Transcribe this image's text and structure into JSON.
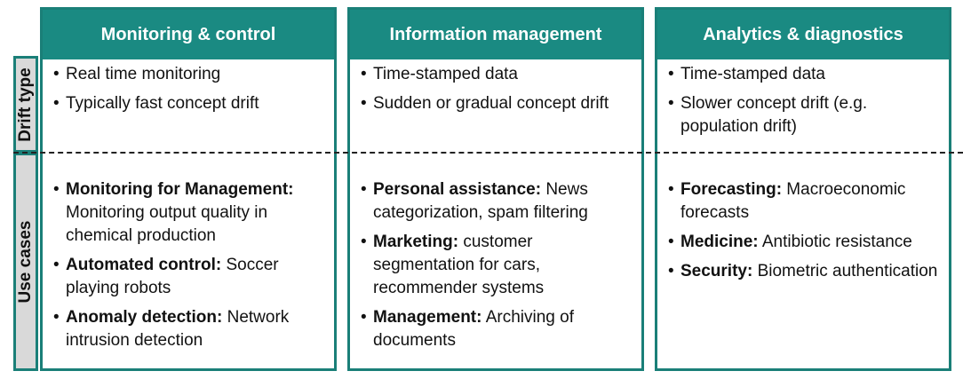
{
  "side_labels": {
    "drift": "Drift type",
    "use": "Use cases"
  },
  "columns": [
    {
      "header": "Monitoring & control",
      "drift": [
        "Real time monitoring",
        "Typically fast concept drift"
      ],
      "uses": [
        {
          "bold": "Monitoring for Management:",
          "text": " Monitoring output quality in chemical production"
        },
        {
          "bold": "Automated control:",
          "text": " Soccer playing robots"
        },
        {
          "bold": "Anomaly detection:",
          "text": " Network intrusion detection"
        }
      ]
    },
    {
      "header": "Information management",
      "drift": [
        "Time-stamped data",
        "Sudden or gradual concept drift"
      ],
      "uses": [
        {
          "bold": "Personal assistance:",
          "text": " News categorization, spam filtering"
        },
        {
          "bold": "Marketing:",
          "text": " customer segmentation for cars, recommender systems"
        },
        {
          "bold": "Management:",
          "text": " Archiving of documents"
        }
      ]
    },
    {
      "header": "Analytics & diagnostics",
      "drift": [
        "Time-stamped data",
        "Slower concept drift (e.g. population drift)"
      ],
      "uses": [
        {
          "bold": "Forecasting:",
          "text": " Macroeconomic forecasts"
        },
        {
          "bold": "Medicine:",
          "text": " Antibiotic resistance"
        },
        {
          "bold": "Security:",
          "text": " Biometric authentication"
        }
      ]
    }
  ]
}
